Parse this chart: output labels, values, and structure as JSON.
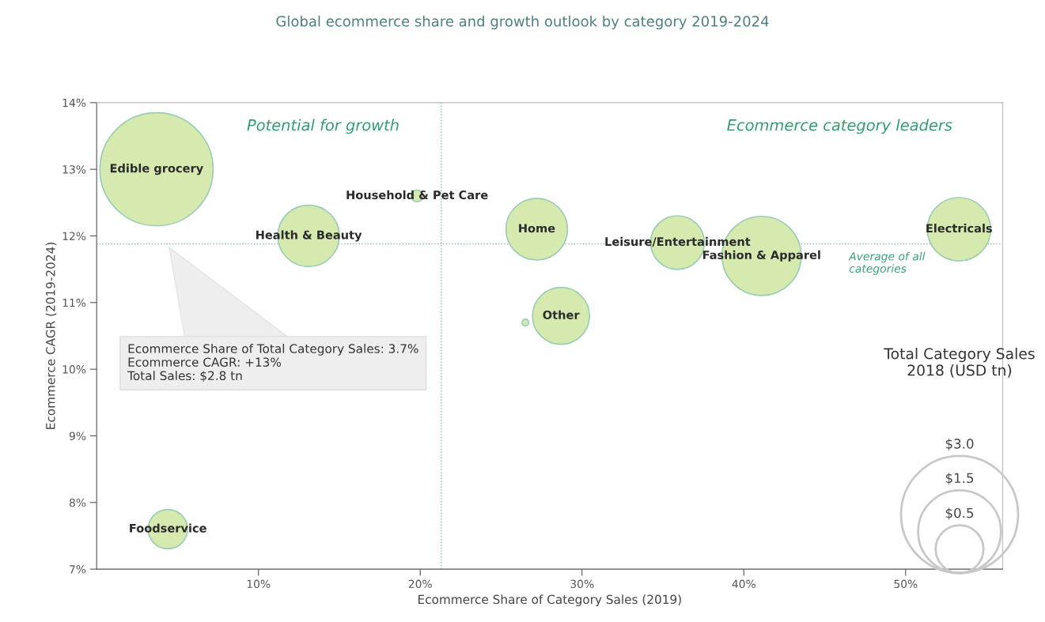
{
  "chart_data": {
    "type": "bubble",
    "title": "Global ecommerce share and growth outlook by category 2019-2024",
    "xlabel": "Ecommerce Share of Category Sales (2019)",
    "ylabel": "Ecommerce CAGR (2019-2024)",
    "legend_title": "Total Category Sales\n2018 (USD tn)",
    "series": [
      {
        "name": "Edible grocery",
        "color": "#d6eab0",
        "x": [
          3.7
        ],
        "values": [
          13
        ],
        "sizes": [
          2.8
        ]
      },
      {
        "name": "Health & Beauty",
        "color": "#d6eab0",
        "x": [
          13.1
        ],
        "values": [
          12.0
        ],
        "sizes": [
          0.83
        ]
      },
      {
        "name": "Household & Pet Care",
        "color": "#d6eab0",
        "x": [
          19.8
        ],
        "values": [
          12.6
        ],
        "sizes": [
          0.03
        ]
      },
      {
        "name": "Home",
        "color": "#d6eab0",
        "x": [
          27.2
        ],
        "values": [
          12.1
        ],
        "sizes": [
          0.83
        ]
      },
      {
        "name": "Leisure/Entertainment",
        "color": "#d6eab0",
        "x": [
          35.9
        ],
        "values": [
          11.9
        ],
        "sizes": [
          0.63
        ]
      },
      {
        "name": "Fashion & Apparel",
        "color": "#d6eab0",
        "x": [
          41.1
        ],
        "values": [
          11.7
        ],
        "sizes": [
          1.37
        ]
      },
      {
        "name": "Electricals",
        "color": "#d6eab0",
        "x": [
          53.3
        ],
        "values": [
          12.1
        ],
        "sizes": [
          0.88
        ]
      },
      {
        "name": "Other",
        "color": "#d6eab0",
        "x": [
          28.7
        ],
        "values": [
          10.8
        ],
        "sizes": [
          0.71
        ]
      },
      {
        "color": "#d6eab0",
        "x": [
          26.5
        ],
        "values": [
          10.7
        ],
        "sizes": [
          0.01
        ]
      },
      {
        "name": "Foodservice",
        "color": "#d6eab0",
        "x": [
          4.4
        ],
        "values": [
          7.6
        ],
        "sizes": [
          0.34
        ]
      }
    ],
    "size_legend": [
      {
        "value": 3.0,
        "label": "$3.0"
      },
      {
        "value": 1.5,
        "label": "$1.5"
      },
      {
        "value": 0.5,
        "label": "$0.5"
      }
    ],
    "xlim": [
      0,
      56
    ],
    "ylim": [
      7,
      14
    ],
    "xticks": [
      {
        "value": 10,
        "label": "10%"
      },
      {
        "value": 20,
        "label": "20%"
      },
      {
        "value": 30,
        "label": "30%"
      },
      {
        "value": 40,
        "label": "40%"
      },
      {
        "value": 50,
        "label": "50%"
      }
    ],
    "yticks": [
      {
        "value": 7,
        "label": "7%"
      },
      {
        "value": 8,
        "label": "8%"
      },
      {
        "value": 9,
        "label": "9%"
      },
      {
        "value": 10,
        "label": "10%"
      },
      {
        "value": 11,
        "label": "11%"
      },
      {
        "value": 12,
        "label": "12%"
      },
      {
        "value": 13,
        "label": "13%"
      },
      {
        "value": 14,
        "label": "14%"
      }
    ],
    "ref_lines": [
      {
        "axis": "x",
        "value": 21.3,
        "color": "#7cc0aa",
        "line_style": "dotted"
      },
      {
        "axis": "y",
        "value": 11.88,
        "label": "Average of all\ncategories",
        "color": "#7cc0aa",
        "line_style": "dotted"
      }
    ],
    "annotations": [
      "Potential for growth",
      "Ecommerce category leaders",
      "Ecommerce Share of Total Category Sales: 3.7%\nEcommerce CAGR: +13%\nTotal Sales: $2.8 tn"
    ],
    "grid": false,
    "legend": false
  }
}
